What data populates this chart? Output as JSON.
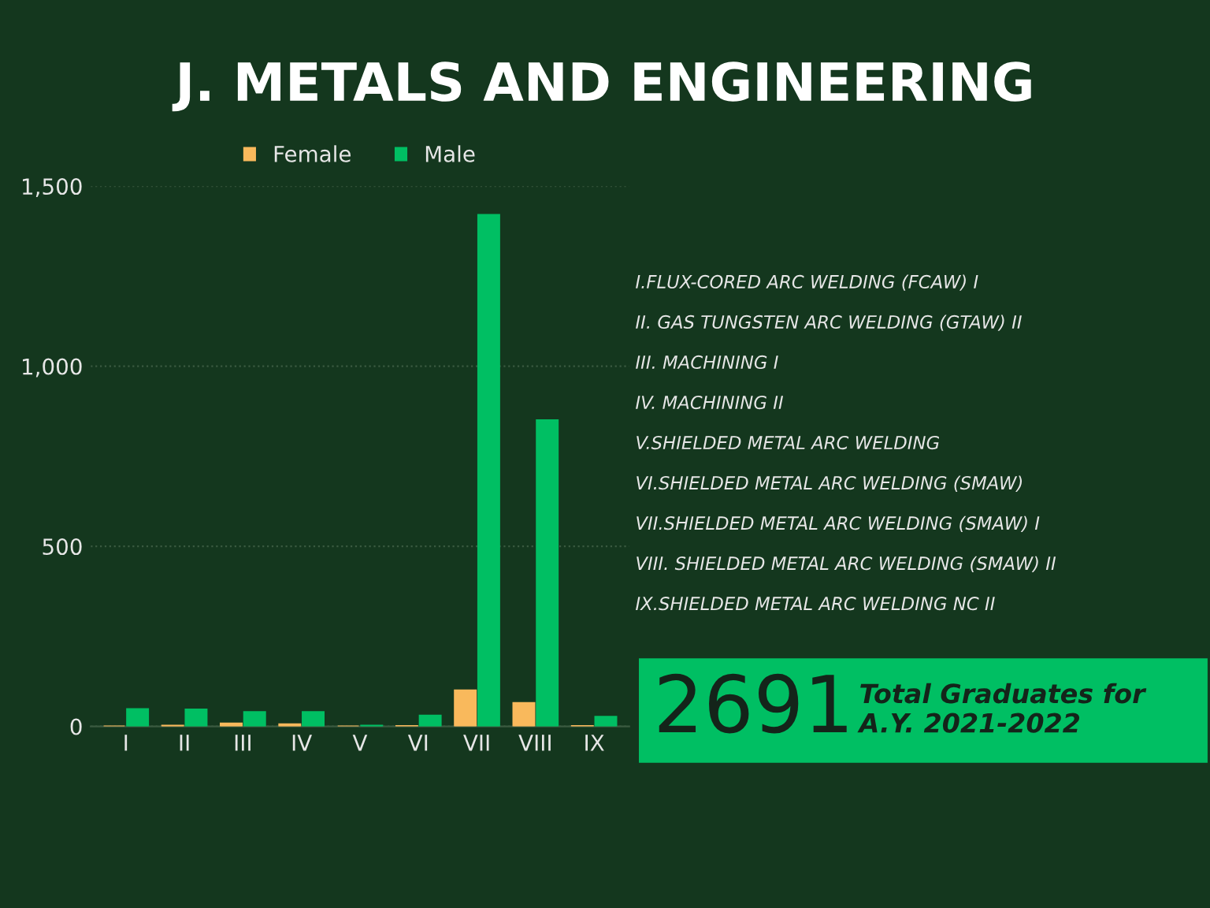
{
  "chart_data": {
    "type": "bar",
    "title": "J. METALS AND ENGINEERING",
    "categories": [
      "I",
      "II",
      "III",
      "IV",
      "V",
      "VI",
      "VII",
      "VIII",
      "IX"
    ],
    "series": [
      {
        "name": "Female",
        "color": "#f9b95c",
        "values": [
          0,
          2,
          8,
          6,
          0,
          1,
          100,
          65,
          1
        ]
      },
      {
        "name": "Male",
        "color": "#00bf63",
        "values": [
          48,
          47,
          40,
          40,
          2,
          30,
          1420,
          850,
          27
        ]
      }
    ],
    "ylim": [
      0,
      1500
    ],
    "yticks": [
      0,
      {
        "value": 500,
        "label": "500"
      },
      {
        "value": 1000,
        "label": "1,000"
      },
      {
        "value": 1500,
        "label": "1,500"
      }
    ],
    "grid": "y",
    "legend": "top",
    "annotations": [
      "I.FLUX-CORED ARC WELDING (FCAW) I",
      "II. GAS TUNGSTEN ARC WELDING (GTAW) II",
      "III. MACHINING I",
      "IV. MACHINING II",
      "V.SHIELDED METAL ARC WELDING",
      "VI.SHIELDED METAL ARC WELDING (SMAW)",
      "VII.SHIELDED METAL ARC WELDING (SMAW) I",
      "VIII. SHIELDED METAL ARC WELDING (SMAW) II",
      "IX.SHIELDED METAL ARC WELDING NC II",
      "2691",
      "Total Graduates for\nA.Y. 2021-2022"
    ]
  }
}
